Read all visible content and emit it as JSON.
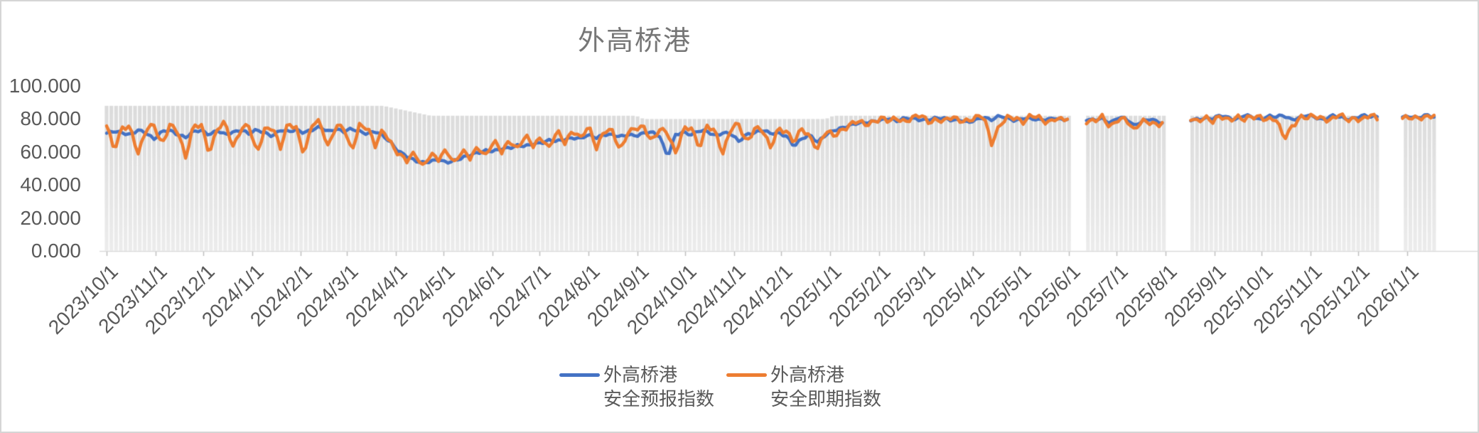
{
  "chart": {
    "title": "外高桥港",
    "y_axis": {
      "tick_labels": [
        "100.000",
        "80.000",
        "60.000",
        "40.000",
        "20.000",
        "0.000"
      ],
      "tick_values": [
        100,
        80,
        60,
        40,
        20,
        0
      ]
    },
    "x_axis": {
      "tick_labels": [
        "2023/10/1",
        "2023/11/1",
        "2023/12/1",
        "2024/1/1",
        "2024/2/1",
        "2024/3/1",
        "2024/4/1",
        "2024/5/1",
        "2024/6/1",
        "2024/7/1",
        "2024/8/1",
        "2024/9/1",
        "2024/10/1",
        "2024/11/1",
        "2024/12/1",
        "2025/1/1",
        "2025/2/1",
        "2025/3/1",
        "2025/4/1",
        "2025/5/1",
        "2025/6/1",
        "2025/7/1",
        "2025/8/1",
        "2025/9/1",
        "2025/10/1",
        "2025/11/1",
        "2025/12/1",
        "2026/1/1"
      ],
      "tick_days": [
        0,
        31,
        61,
        92,
        123,
        152,
        183,
        213,
        244,
        274,
        305,
        336,
        366,
        397,
        427,
        458,
        489,
        517,
        548,
        578,
        609,
        639,
        670,
        701,
        731,
        762,
        792,
        823
      ]
    },
    "legend": [
      {
        "line1": "外高桥港",
        "line2": "安全预报指数",
        "color": "#4472C4"
      },
      {
        "line1": "外高桥港",
        "line2": "安全即期指数",
        "color": "#ED7D31"
      }
    ],
    "colors": {
      "forecast_line": "#4472C4",
      "spot_line": "#ED7D31",
      "background_bars": "#E2E2E2",
      "axis_line": "#D9D9D9",
      "tick_mark": "#BFBFBF",
      "text": "#595959",
      "title_text": "#767676"
    }
  },
  "chart_data": {
    "type": "line",
    "title": "外高桥港",
    "ylim": [
      0,
      100
    ],
    "grid": false,
    "legend_position": "bottom",
    "x_unit": "days since 2023/10/1",
    "x_range_days": [
      0,
      840
    ],
    "sample_step_days": 5,
    "data_gaps_days": [
      [
        613,
        621
      ],
      [
        672,
        682
      ],
      [
        808,
        818
      ]
    ],
    "series": [
      {
        "name": "外高桥港 安全预报指数",
        "type": "line",
        "color": "#4472C4",
        "volatility": 1.1,
        "values": [
          71,
          73,
          72,
          70,
          73,
          72,
          68,
          72,
          73,
          71,
          69,
          72,
          73,
          71,
          73,
          70,
          72,
          74,
          71,
          73,
          72,
          70,
          73,
          72,
          74,
          72,
          73,
          75,
          73,
          74,
          72,
          74,
          73,
          71,
          72,
          70,
          66,
          60,
          57,
          55,
          54,
          54,
          55,
          54,
          55,
          56,
          58,
          60,
          61,
          60,
          62,
          63,
          64,
          63,
          65,
          66,
          67,
          66,
          68,
          69,
          68,
          70,
          69,
          71,
          70,
          69,
          71,
          70,
          71,
          72,
          70,
          57,
          70,
          72,
          71,
          73,
          72,
          70,
          72,
          71,
          66,
          71,
          72,
          73,
          71,
          72,
          70,
          63,
          68,
          71,
          66,
          70,
          73,
          75,
          76,
          77,
          78,
          79,
          79,
          80,
          79,
          81,
          80,
          79,
          80,
          81,
          80,
          79,
          80,
          78,
          79,
          81,
          80,
          82,
          80,
          79,
          81,
          80,
          79,
          80,
          81,
          79,
          80,
          null,
          80,
          79,
          80,
          78,
          81,
          80,
          76,
          79,
          80,
          78,
          77,
          null,
          null,
          79,
          80,
          81,
          80,
          82,
          81,
          80,
          82,
          81,
          80,
          82,
          81,
          82,
          80,
          81,
          82,
          81,
          80,
          82,
          81,
          80,
          81,
          82,
          81,
          82,
          null,
          null,
          81,
          82,
          81,
          82,
          81
        ]
      },
      {
        "name": "外高桥港 安全即期指数",
        "type": "line",
        "color": "#ED7D31",
        "volatility": 2.3,
        "values": [
          75,
          62,
          76,
          74,
          58,
          75,
          77,
          63,
          76,
          74,
          57,
          75,
          76,
          60,
          74,
          77,
          63,
          75,
          76,
          58,
          74,
          76,
          62,
          77,
          75,
          59,
          76,
          78,
          64,
          76,
          74,
          60,
          77,
          75,
          63,
          74,
          66,
          58,
          54,
          60,
          52,
          58,
          55,
          62,
          54,
          60,
          56,
          64,
          58,
          66,
          60,
          68,
          62,
          69,
          64,
          70,
          62,
          72,
          66,
          74,
          68,
          75,
          63,
          74,
          72,
          60,
          73,
          75,
          74,
          66,
          75,
          72,
          58,
          74,
          76,
          62,
          75,
          73,
          60,
          74,
          76,
          66,
          75,
          73,
          62,
          75,
          73,
          65,
          74,
          70,
          62,
          72,
          70,
          74,
          76,
          78,
          77,
          79,
          80,
          78,
          81,
          79,
          80,
          82,
          79,
          80,
          78,
          81,
          80,
          79,
          80,
          82,
          66,
          76,
          80,
          81,
          79,
          82,
          80,
          78,
          81,
          79,
          80,
          null,
          79,
          78,
          81,
          76,
          80,
          79,
          73,
          80,
          78,
          75,
          79,
          null,
          null,
          80,
          79,
          82,
          78,
          81,
          80,
          82,
          79,
          81,
          82,
          80,
          79,
          68,
          76,
          81,
          80,
          82,
          81,
          79,
          82,
          80,
          81,
          79,
          82,
          80,
          null,
          null,
          80,
          82,
          81,
          80,
          82
        ]
      },
      {
        "name": "unlabeled-gray-background-bars",
        "type": "bar",
        "color": "#E2E2E2",
        "volatility": 0,
        "values": [
          88,
          88,
          88,
          88,
          88,
          88,
          88,
          88,
          88,
          88,
          88,
          88,
          88,
          88,
          88,
          88,
          88,
          88,
          88,
          88,
          88,
          88,
          88,
          88,
          88,
          88,
          88,
          88,
          88,
          88,
          88,
          88,
          88,
          88,
          88,
          88,
          87,
          86,
          85,
          84,
          83,
          82,
          82,
          82,
          82,
          82,
          82,
          82,
          82,
          82,
          82,
          82,
          82,
          82,
          82,
          82,
          82,
          82,
          82,
          82,
          82,
          82,
          82,
          82,
          82,
          82,
          82,
          82,
          80,
          80,
          80,
          80,
          80,
          80,
          80,
          80,
          80,
          80,
          80,
          80,
          80,
          80,
          80,
          80,
          80,
          80,
          80,
          80,
          80,
          80,
          80,
          80,
          82,
          82,
          82,
          82,
          82,
          82,
          82,
          82,
          82,
          82,
          82,
          82,
          82,
          82,
          82,
          82,
          82,
          82,
          82,
          82,
          82,
          82,
          82,
          82,
          82,
          82,
          82,
          82,
          82,
          82,
          82,
          null,
          82,
          82,
          82,
          82,
          82,
          82,
          82,
          82,
          82,
          82,
          82,
          null,
          null,
          82,
          82,
          82,
          82,
          82,
          82,
          82,
          82,
          82,
          82,
          82,
          82,
          82,
          82,
          82,
          82,
          82,
          82,
          82,
          82,
          82,
          82,
          82,
          82,
          82,
          null,
          null,
          82,
          82,
          82,
          82,
          82
        ]
      }
    ]
  }
}
